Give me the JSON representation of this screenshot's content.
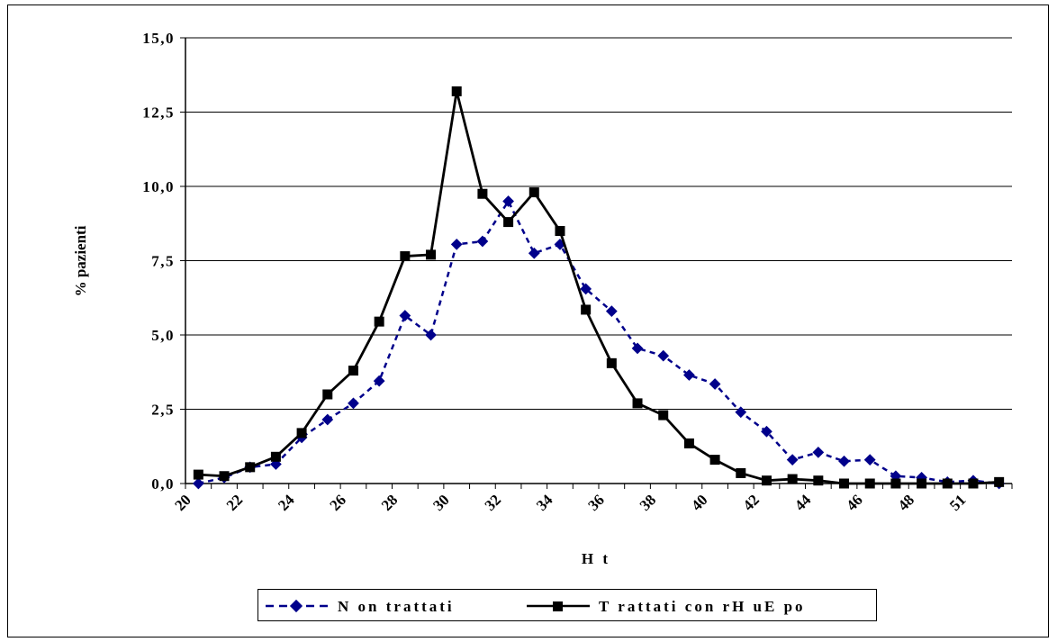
{
  "chart_data": {
    "type": "line",
    "xlabel": "H t",
    "ylabel": "% pazienti",
    "ylim": [
      0,
      15
    ],
    "yticks": [
      "0,0",
      "2,5",
      "5,0",
      "7,5",
      "10,0",
      "12,5",
      "15,0"
    ],
    "xtick_labels": [
      "20",
      "22",
      "24",
      "26",
      "28",
      "30",
      "32",
      "34",
      "36",
      "38",
      "40",
      "42",
      "44",
      "46",
      "48",
      "51"
    ],
    "grid": "horizontal",
    "legend_position": "bottom",
    "series": [
      {
        "name": "N on trattati",
        "color": "#00008B",
        "style": "dashed-diamond",
        "values": [
          0.0,
          0.2,
          0.55,
          0.65,
          1.55,
          2.15,
          2.7,
          3.45,
          5.65,
          5.0,
          8.05,
          8.15,
          9.5,
          7.75,
          8.05,
          6.55,
          5.8,
          4.55,
          4.3,
          3.65,
          3.35,
          2.4,
          1.75,
          0.8,
          1.05,
          0.75,
          0.8,
          0.25,
          0.2,
          0.05,
          0.1,
          0.0
        ]
      },
      {
        "name": "T rattati con rH uE po",
        "color": "#000000",
        "style": "solid-square",
        "values": [
          0.3,
          0.25,
          0.55,
          0.9,
          1.7,
          3.0,
          3.8,
          5.45,
          7.65,
          7.7,
          13.2,
          9.75,
          8.8,
          9.8,
          8.5,
          5.85,
          4.05,
          2.7,
          2.3,
          1.35,
          0.8,
          0.35,
          0.1,
          0.15,
          0.1,
          0.0,
          0.0,
          0.0,
          0.0,
          0.0,
          0.0,
          0.05
        ]
      }
    ]
  }
}
